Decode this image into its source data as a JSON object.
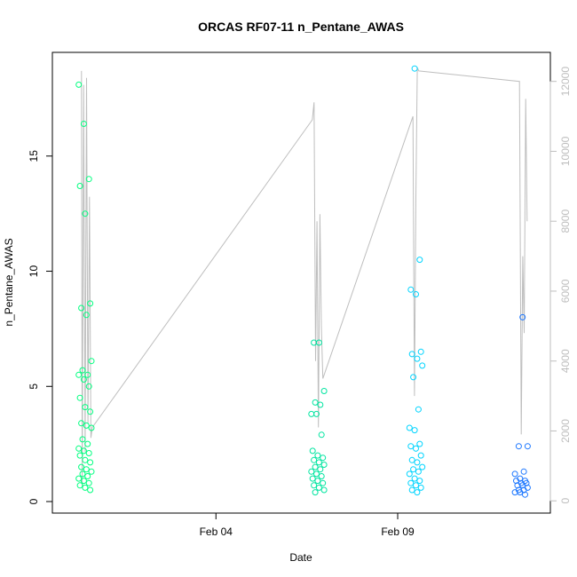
{
  "chart_data": {
    "type": "scatter",
    "title": "ORCAS RF07-11 n_Pentane_AWAS",
    "xlabel": "Date",
    "ylabel": "n_Pentane_AWAS",
    "ylim": [
      0,
      19
    ],
    "y_ticks": [
      0,
      5,
      10,
      15
    ],
    "x_ticks": [
      {
        "t": 4.0,
        "label": "Feb 04"
      },
      {
        "t": 9.0,
        "label": "Feb 09"
      }
    ],
    "xlim": [
      -0.5,
      13.2
    ],
    "y2lim": [
      -20,
      12500
    ],
    "y2_ticks": [
      0,
      2000,
      4000,
      6000,
      8000,
      10000,
      12000
    ],
    "grid": false,
    "point_color_scale": [
      "#00FF7F",
      "#00E5A0",
      "#00D4FF",
      "#00A0FF",
      "#1E6EFF"
    ],
    "background_series": {
      "name": "",
      "color": "#bebebe",
      "points": [
        [
          0.3,
          12300
        ],
        [
          0.32,
          400
        ],
        [
          0.36,
          11900
        ],
        [
          0.4,
          1400
        ],
        [
          0.44,
          12100
        ],
        [
          0.48,
          2200
        ],
        [
          0.52,
          8700
        ],
        [
          0.56,
          1800
        ],
        [
          0.6,
          2100
        ],
        [
          6.65,
          10900
        ],
        [
          6.7,
          11400
        ],
        [
          6.74,
          4000
        ],
        [
          6.78,
          8000
        ],
        [
          6.82,
          2100
        ],
        [
          6.86,
          8200
        ],
        [
          6.9,
          5000
        ],
        [
          6.94,
          3500
        ],
        [
          9.42,
          11000
        ],
        [
          9.46,
          3000
        ],
        [
          9.5,
          8700
        ],
        [
          9.54,
          12400
        ],
        [
          9.58,
          12300
        ],
        [
          12.35,
          12000
        ],
        [
          12.4,
          1900
        ],
        [
          12.44,
          7000
        ],
        [
          12.48,
          4800
        ],
        [
          12.52,
          11500
        ],
        [
          12.56,
          8000
        ]
      ]
    },
    "series": [
      {
        "name": "",
        "flight_day": 0.4,
        "color": "#00FF7F",
        "values": [
          18.1,
          16.4,
          14.0,
          13.7,
          12.5,
          8.6,
          8.4,
          8.1,
          6.1,
          5.7,
          5.5,
          5.5,
          5.3,
          5.0,
          4.5,
          4.1,
          3.9,
          3.4,
          3.3,
          3.2,
          2.7,
          2.5,
          2.3,
          2.2,
          2.1,
          2.0,
          1.8,
          1.7,
          1.5,
          1.4,
          1.3,
          1.2,
          1.1,
          1.0,
          0.9,
          0.8,
          0.7,
          0.6,
          0.5
        ]
      },
      {
        "name": "",
        "flight_day": 6.8,
        "color": "#00E5A0",
        "values": [
          6.9,
          6.9,
          4.8,
          4.3,
          4.2,
          3.8,
          3.8,
          2.9,
          2.2,
          2.0,
          1.9,
          1.8,
          1.7,
          1.6,
          1.5,
          1.4,
          1.3,
          1.2,
          1.1,
          1.0,
          0.9,
          0.8,
          0.7,
          0.6,
          0.5,
          0.4
        ]
      },
      {
        "name": "",
        "flight_day": 9.5,
        "color": "#00D4FF",
        "values": [
          18.8,
          10.5,
          9.2,
          9.0,
          6.5,
          6.4,
          6.2,
          5.9,
          5.4,
          4.0,
          3.2,
          3.1,
          2.5,
          2.4,
          2.3,
          2.0,
          1.8,
          1.7,
          1.5,
          1.4,
          1.3,
          1.2,
          1.0,
          0.9,
          0.8,
          0.7,
          0.6,
          0.5,
          0.4
        ]
      },
      {
        "name": "",
        "flight_day": 12.4,
        "color": "#1E78FF",
        "values": [
          8.0,
          2.4,
          2.4,
          1.3,
          1.2,
          1.0,
          0.9,
          0.9,
          0.8,
          0.8,
          0.7,
          0.7,
          0.6,
          0.5,
          0.5,
          0.4,
          0.4,
          0.3
        ]
      }
    ]
  }
}
